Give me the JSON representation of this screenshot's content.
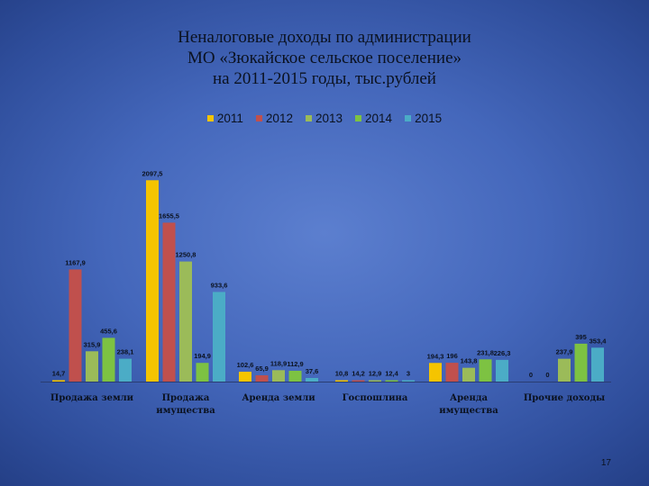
{
  "title": {
    "line1": "Неналоговые доходы по администрации",
    "line2": "МО «Зюкайское сельское поселение»",
    "line3": "на 2011-2015 годы, тыс.рублей"
  },
  "page_number": "17",
  "chart_data": {
    "type": "bar",
    "categories": [
      [
        "Продажа земли"
      ],
      [
        "Продажа",
        "имущества"
      ],
      [
        "Аренда земли"
      ],
      [
        "Госпошлина"
      ],
      [
        "Аренда",
        "имущества"
      ],
      [
        "Прочие доходы"
      ]
    ],
    "series": [
      {
        "name": "2011",
        "color": "#f5c400",
        "values": [
          14.7,
          2097.5,
          102.6,
          10.8,
          194.3,
          0
        ],
        "labels": [
          "14,7",
          "2097,5",
          "102,6",
          "10,8",
          "194,3",
          "0"
        ]
      },
      {
        "name": "2012",
        "color": "#c0504d",
        "values": [
          1167.9,
          1655.5,
          65.9,
          14.2,
          196,
          0
        ],
        "labels": [
          "1167,9",
          "1655,5",
          "65,9",
          "14,2",
          "196",
          "0"
        ]
      },
      {
        "name": "2013",
        "color": "#9bbb59",
        "values": [
          315.9,
          1250.8,
          118.9,
          12.9,
          143.8,
          237.9
        ],
        "labels": [
          "315,9",
          "1250,8",
          "118,9",
          "12,9",
          "143,8",
          "237,9"
        ]
      },
      {
        "name": "2014",
        "color": "#7dc242",
        "values": [
          455.6,
          194.9,
          112.9,
          12.4,
          231.8,
          395
        ],
        "labels": [
          "455,6",
          "194,9",
          "112,9",
          "12,4",
          "231,8",
          "395"
        ]
      },
      {
        "name": "2015",
        "color": "#4bacc6",
        "values": [
          238.1,
          933.6,
          37.6,
          3,
          226.3,
          353.4
        ],
        "labels": [
          "238,1",
          "933,6",
          "37,6",
          "3",
          "226,3",
          "353,4"
        ]
      }
    ],
    "ylim": [
      0,
      2100
    ],
    "legend_position": "top",
    "grid": false
  }
}
